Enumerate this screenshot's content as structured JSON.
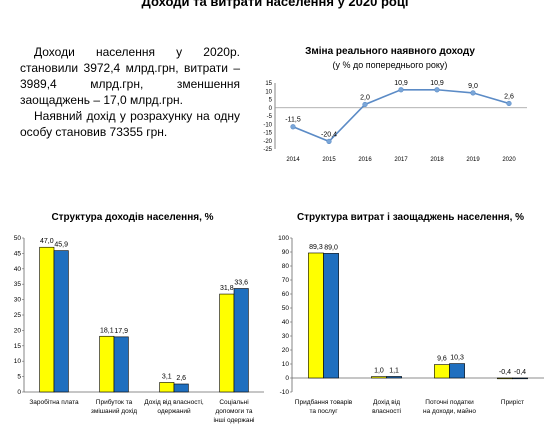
{
  "page": {
    "title": "Доходи та витрати населення у 2020 році",
    "paragraph1": "Доходи населення у 2020р. становили 3972,4 млрд.грн, витрати – 3989,4 млрд.грн, зменшення заощаджень – 17,0 млрд.грн.",
    "paragraph2": "Наявний дохід у розрахунку на одну особу становив 73355 грн."
  },
  "colors": {
    "series_2019": "#ffff00",
    "series_2020": "#1f6fbf",
    "line": "#5b8bc6",
    "marker": "#7aa6d8"
  },
  "chart_data": [
    {
      "type": "line",
      "title": "Зміна реального наявного доходу",
      "subtitle": "(у % до попереднього року)",
      "x": [
        "2014",
        "2015",
        "2016",
        "2017",
        "2018",
        "2019",
        "2020"
      ],
      "values": [
        -11.5,
        -20.4,
        2.0,
        10.9,
        10.9,
        9.0,
        2.6
      ],
      "data_labels": [
        "-11,5",
        "-20,4",
        "2,0",
        "10,9",
        "10,9",
        "9,0",
        "2,6"
      ],
      "yticks": [
        "15",
        "10",
        "5",
        "0",
        "-5",
        "-10",
        "-15",
        "-20",
        "-25"
      ],
      "ylim": [
        -25,
        15
      ]
    },
    {
      "type": "bar",
      "title": "Структура доходів населення, %",
      "categories": [
        [
          "Заробітна плата"
        ],
        [
          "Прибуток та",
          "змішаний дохід"
        ],
        [
          "Дохід від власності,",
          "одержаний"
        ],
        [
          "Соціальні",
          "допомоги та",
          "інші одержані"
        ]
      ],
      "series": [
        {
          "values": [
            47.0,
            18.1,
            3.1,
            31.8
          ],
          "labels": [
            "47,0",
            "18,1",
            "3,1",
            "31,8"
          ]
        },
        {
          "values": [
            45.9,
            17.9,
            2.6,
            33.6
          ],
          "labels": [
            "45,9",
            "17,9",
            "2,6",
            "33,6"
          ]
        }
      ],
      "yticks": [
        "50",
        "45",
        "40",
        "35",
        "30",
        "25",
        "20",
        "15",
        "10",
        "5",
        "0"
      ],
      "ylim": [
        0,
        50
      ]
    },
    {
      "type": "bar",
      "title": "Структура витрат і заощаджень населення, %",
      "categories": [
        [
          "Придбання товарів",
          "та послуг"
        ],
        [
          "Дохід від",
          "власності"
        ],
        [
          "Поточні податки",
          "на доходи, майно"
        ],
        [
          "Приріст"
        ]
      ],
      "series": [
        {
          "values": [
            89.3,
            1.0,
            9.6,
            -0.4
          ],
          "labels": [
            "89,3",
            "1,0",
            "9,6",
            "-0,4"
          ]
        },
        {
          "values": [
            89.0,
            1.1,
            10.3,
            -0.4
          ],
          "labels": [
            "89,0",
            "1,1",
            "10,3",
            "-0,4"
          ]
        }
      ],
      "yticks": [
        "100",
        "90",
        "80",
        "70",
        "60",
        "50",
        "40",
        "30",
        "20",
        "10",
        "0",
        "-10"
      ],
      "ylim": [
        -10,
        100
      ]
    }
  ]
}
